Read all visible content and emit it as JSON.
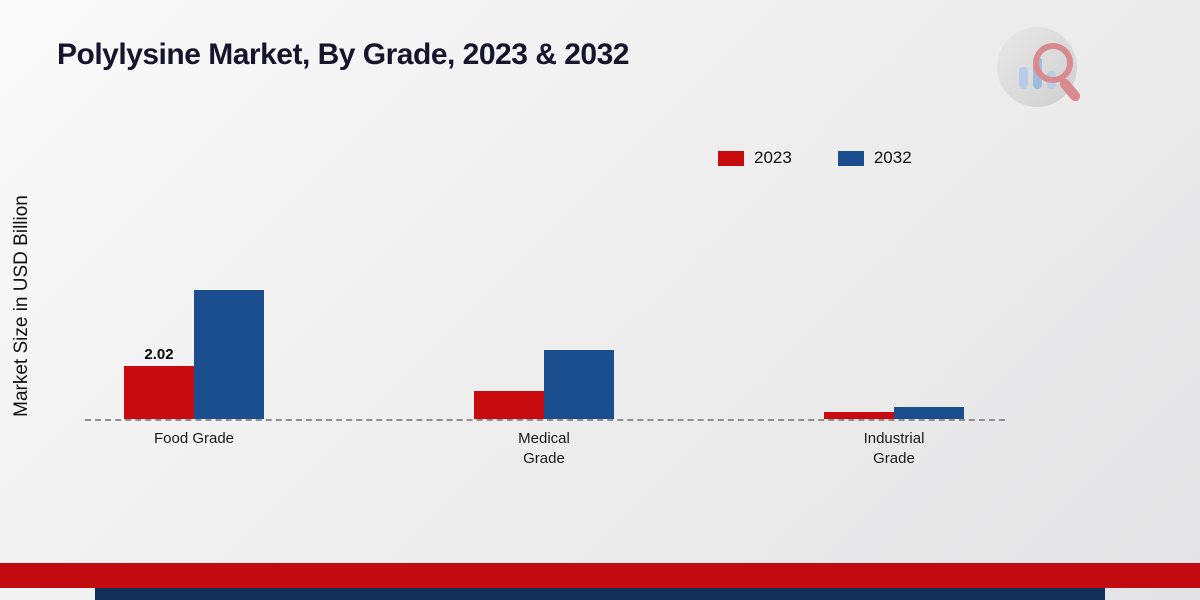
{
  "header": {
    "title": "Polylysine Market, By Grade, 2023 & 2032"
  },
  "axis": {
    "y_label": "Market Size in USD Billion"
  },
  "legend": {
    "items": [
      {
        "label": "2023"
      },
      {
        "label": "2032"
      }
    ]
  },
  "chart_data": {
    "type": "bar",
    "title": "Polylysine Market, By Grade, 2023 & 2032",
    "xlabel": "",
    "ylabel": "Market Size in USD Billion",
    "categories": [
      "Food Grade",
      "Medical Grade",
      "Industrial Grade"
    ],
    "series": [
      {
        "name": "2023",
        "color": "#c70b0e",
        "values": [
          2.02,
          1.05,
          0.25
        ]
      },
      {
        "name": "2032",
        "color": "#1a4e8e",
        "values": [
          4.9,
          2.6,
          0.45
        ]
      }
    ],
    "annotations": [
      {
        "series_index": 0,
        "category_index": 0,
        "text": "2.02"
      }
    ],
    "ylim": [
      0,
      5.5
    ],
    "grid": false,
    "baseline_style": "dashed",
    "legend_position": "top-right"
  },
  "branding": {
    "logo_name": "market-research-logo",
    "accent_red": "#c20b10",
    "accent_navy": "#122f5a"
  }
}
